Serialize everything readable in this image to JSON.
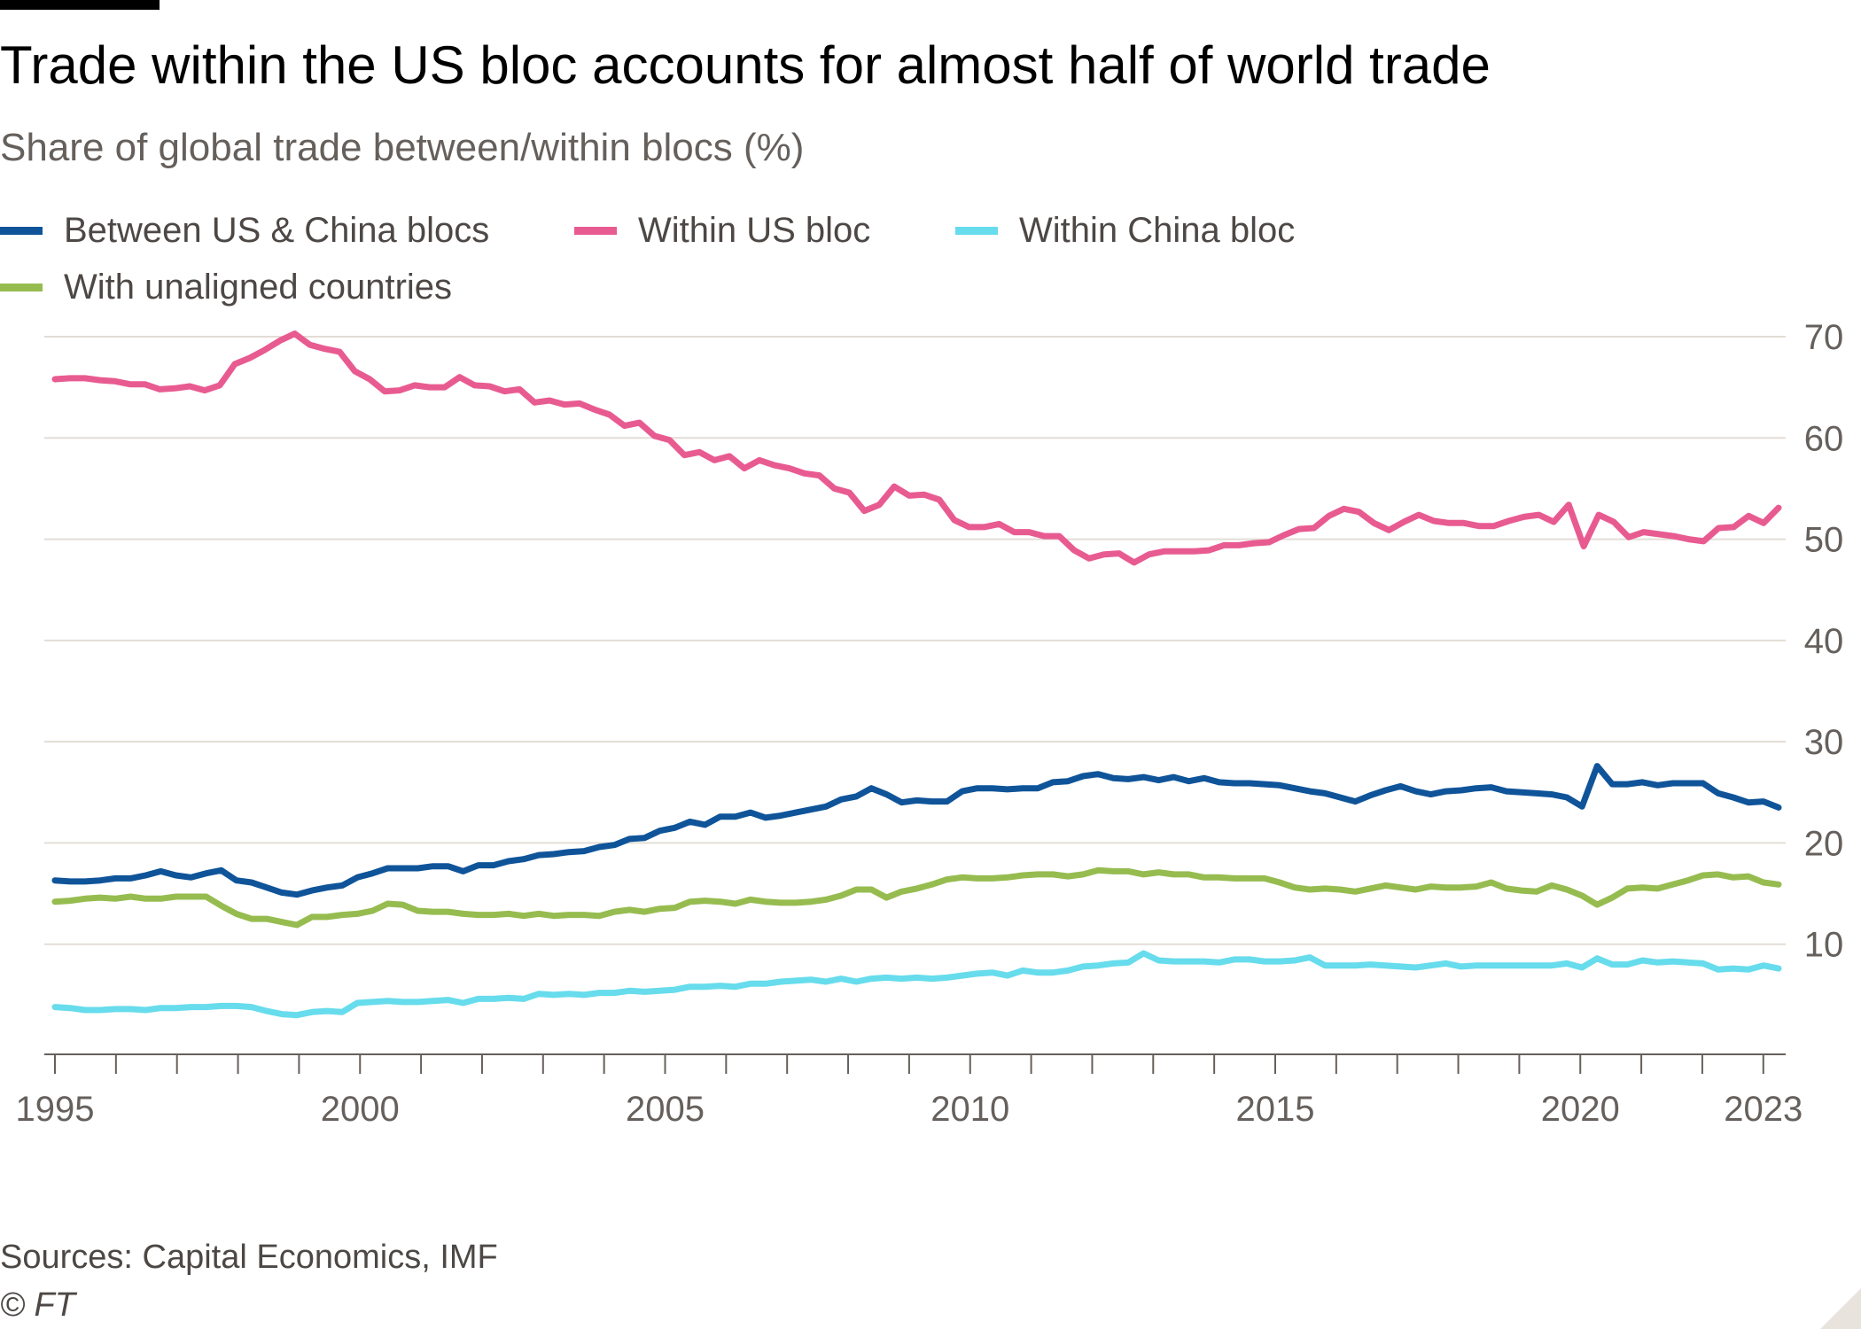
{
  "header": {
    "title": "Trade within the US bloc accounts for almost half of world trade",
    "subtitle": "Share of global trade between/within blocs (%)"
  },
  "footer": {
    "sources": "Sources: Capital Economics, IMF",
    "copyright": "© FT"
  },
  "chart_data": {
    "type": "line",
    "title": "Trade within the US bloc accounts for almost half of world trade",
    "subtitle": "Share of global trade between/within blocs (%)",
    "xlabel": "",
    "ylabel": "",
    "x_start": 1995,
    "x_end": 2023.25,
    "frequency": "quarterly",
    "ylim": [
      0,
      70
    ],
    "y_ticks": [
      10,
      20,
      30,
      40,
      50,
      60,
      70
    ],
    "x_tick_labels": [
      "1995",
      "2000",
      "2005",
      "2010",
      "2015",
      "2020",
      "2023"
    ],
    "x_tick_values": [
      1995,
      2000,
      2005,
      2010,
      2015,
      2020,
      2023
    ],
    "grid": true,
    "legend_position": "top-left",
    "series": [
      {
        "name": "Between US & China blocs",
        "color": "#0f5499",
        "values": [
          16.3,
          16.2,
          16.2,
          16.3,
          16.5,
          16.5,
          16.8,
          17.2,
          16.8,
          16.6,
          17.0,
          17.3,
          16.3,
          16.1,
          15.6,
          15.1,
          14.9,
          15.3,
          15.6,
          15.8,
          16.6,
          17.0,
          17.5,
          17.5,
          17.5,
          17.7,
          17.7,
          17.2,
          17.8,
          17.8,
          18.2,
          18.4,
          18.8,
          18.9,
          19.1,
          19.2,
          19.6,
          19.8,
          20.4,
          20.5,
          21.2,
          21.5,
          22.1,
          21.8,
          22.6,
          22.6,
          23.0,
          22.5,
          22.7,
          23.0,
          23.3,
          23.6,
          24.3,
          24.6,
          25.4,
          24.8,
          24.0,
          24.2,
          24.1,
          24.1,
          25.1,
          25.4,
          25.4,
          25.3,
          25.4,
          25.4,
          26.0,
          26.1,
          26.6,
          26.8,
          26.4,
          26.3,
          26.5,
          26.2,
          26.5,
          26.1,
          26.4,
          26.0,
          25.9,
          25.9,
          25.8,
          25.7,
          25.4,
          25.1,
          24.9,
          24.5,
          24.1,
          24.7,
          25.2,
          25.6,
          25.1,
          24.8,
          25.1,
          25.2,
          25.4,
          25.5,
          25.1,
          25.0,
          24.9,
          24.8,
          24.5,
          23.6,
          27.6,
          25.8,
          25.8,
          26.0,
          25.7,
          25.9,
          25.9,
          25.9,
          24.9,
          24.5,
          24.0,
          24.1,
          23.5
        ]
      },
      {
        "name": "Within US bloc",
        "color": "#e85b91",
        "values": [
          65.8,
          65.9,
          65.9,
          65.7,
          65.6,
          65.3,
          65.3,
          64.8,
          64.9,
          65.1,
          64.7,
          65.2,
          67.3,
          67.9,
          68.7,
          69.6,
          70.3,
          69.2,
          68.8,
          68.5,
          66.6,
          65.8,
          64.6,
          64.7,
          65.2,
          65.0,
          65.0,
          66.0,
          65.2,
          65.1,
          64.6,
          64.8,
          63.5,
          63.7,
          63.3,
          63.4,
          62.8,
          62.3,
          61.2,
          61.5,
          60.2,
          59.8,
          58.3,
          58.6,
          57.8,
          58.2,
          57.0,
          57.8,
          57.3,
          57.0,
          56.5,
          56.3,
          55.0,
          54.6,
          52.8,
          53.4,
          55.2,
          54.3,
          54.4,
          53.9,
          51.9,
          51.2,
          51.2,
          51.5,
          50.7,
          50.7,
          50.3,
          50.3,
          48.9,
          48.1,
          48.5,
          48.6,
          47.7,
          48.5,
          48.8,
          48.8,
          48.8,
          48.9,
          49.4,
          49.4,
          49.6,
          49.7,
          50.4,
          51.0,
          51.1,
          52.3,
          53.0,
          52.7,
          51.6,
          50.9,
          51.7,
          52.4,
          51.8,
          51.6,
          51.6,
          51.3,
          51.3,
          51.8,
          52.2,
          52.4,
          51.7,
          53.4,
          49.3,
          52.4,
          51.7,
          50.2,
          50.7,
          50.5,
          50.3,
          50.0,
          49.8,
          51.1,
          51.2,
          52.3,
          51.6,
          53.1
        ]
      },
      {
        "name": "Within China bloc",
        "color": "#67dcec",
        "values": [
          3.8,
          3.7,
          3.5,
          3.5,
          3.6,
          3.6,
          3.5,
          3.7,
          3.7,
          3.8,
          3.8,
          3.9,
          3.9,
          3.8,
          3.4,
          3.1,
          3.0,
          3.3,
          3.4,
          3.3,
          4.2,
          4.3,
          4.4,
          4.3,
          4.3,
          4.4,
          4.5,
          4.2,
          4.6,
          4.6,
          4.7,
          4.6,
          5.1,
          5.0,
          5.1,
          5.0,
          5.2,
          5.2,
          5.4,
          5.3,
          5.4,
          5.5,
          5.8,
          5.8,
          5.9,
          5.8,
          6.1,
          6.1,
          6.3,
          6.4,
          6.5,
          6.3,
          6.6,
          6.3,
          6.6,
          6.7,
          6.6,
          6.7,
          6.6,
          6.7,
          6.9,
          7.1,
          7.2,
          6.9,
          7.4,
          7.2,
          7.2,
          7.4,
          7.8,
          7.9,
          8.1,
          8.2,
          9.1,
          8.4,
          8.3,
          8.3,
          8.3,
          8.2,
          8.5,
          8.5,
          8.3,
          8.3,
          8.4,
          8.7,
          7.9,
          7.9,
          7.9,
          8.0,
          7.9,
          7.8,
          7.7,
          7.9,
          8.1,
          7.8,
          7.9,
          7.9,
          7.9,
          7.9,
          7.9,
          7.9,
          8.1,
          7.7,
          8.6,
          8.0,
          8.0,
          8.4,
          8.2,
          8.3,
          8.2,
          8.1,
          7.5,
          7.6,
          7.5,
          7.9,
          7.6
        ]
      },
      {
        "name": "With unaligned countries",
        "color": "#96bc50",
        "values": [
          14.2,
          14.3,
          14.5,
          14.6,
          14.5,
          14.7,
          14.5,
          14.5,
          14.7,
          14.7,
          14.7,
          13.8,
          13.0,
          12.5,
          12.5,
          12.2,
          11.9,
          12.7,
          12.7,
          12.9,
          13.0,
          13.3,
          14.0,
          13.9,
          13.3,
          13.2,
          13.2,
          13.0,
          12.9,
          12.9,
          13.0,
          12.8,
          13.0,
          12.8,
          12.9,
          12.9,
          12.8,
          13.2,
          13.4,
          13.2,
          13.5,
          13.6,
          14.2,
          14.3,
          14.2,
          14.0,
          14.4,
          14.2,
          14.1,
          14.1,
          14.2,
          14.4,
          14.8,
          15.4,
          15.4,
          14.6,
          15.2,
          15.5,
          15.9,
          16.4,
          16.6,
          16.5,
          16.5,
          16.6,
          16.8,
          16.9,
          16.9,
          16.7,
          16.9,
          17.3,
          17.2,
          17.2,
          16.9,
          17.1,
          16.9,
          16.9,
          16.6,
          16.6,
          16.5,
          16.5,
          16.5,
          16.1,
          15.6,
          15.4,
          15.5,
          15.4,
          15.2,
          15.5,
          15.8,
          15.6,
          15.4,
          15.7,
          15.6,
          15.6,
          15.7,
          16.1,
          15.5,
          15.3,
          15.2,
          15.8,
          15.4,
          14.8,
          13.9,
          14.6,
          15.5,
          15.6,
          15.5,
          15.9,
          16.3,
          16.8,
          16.9,
          16.6,
          16.7,
          16.1,
          15.9
        ]
      }
    ]
  }
}
